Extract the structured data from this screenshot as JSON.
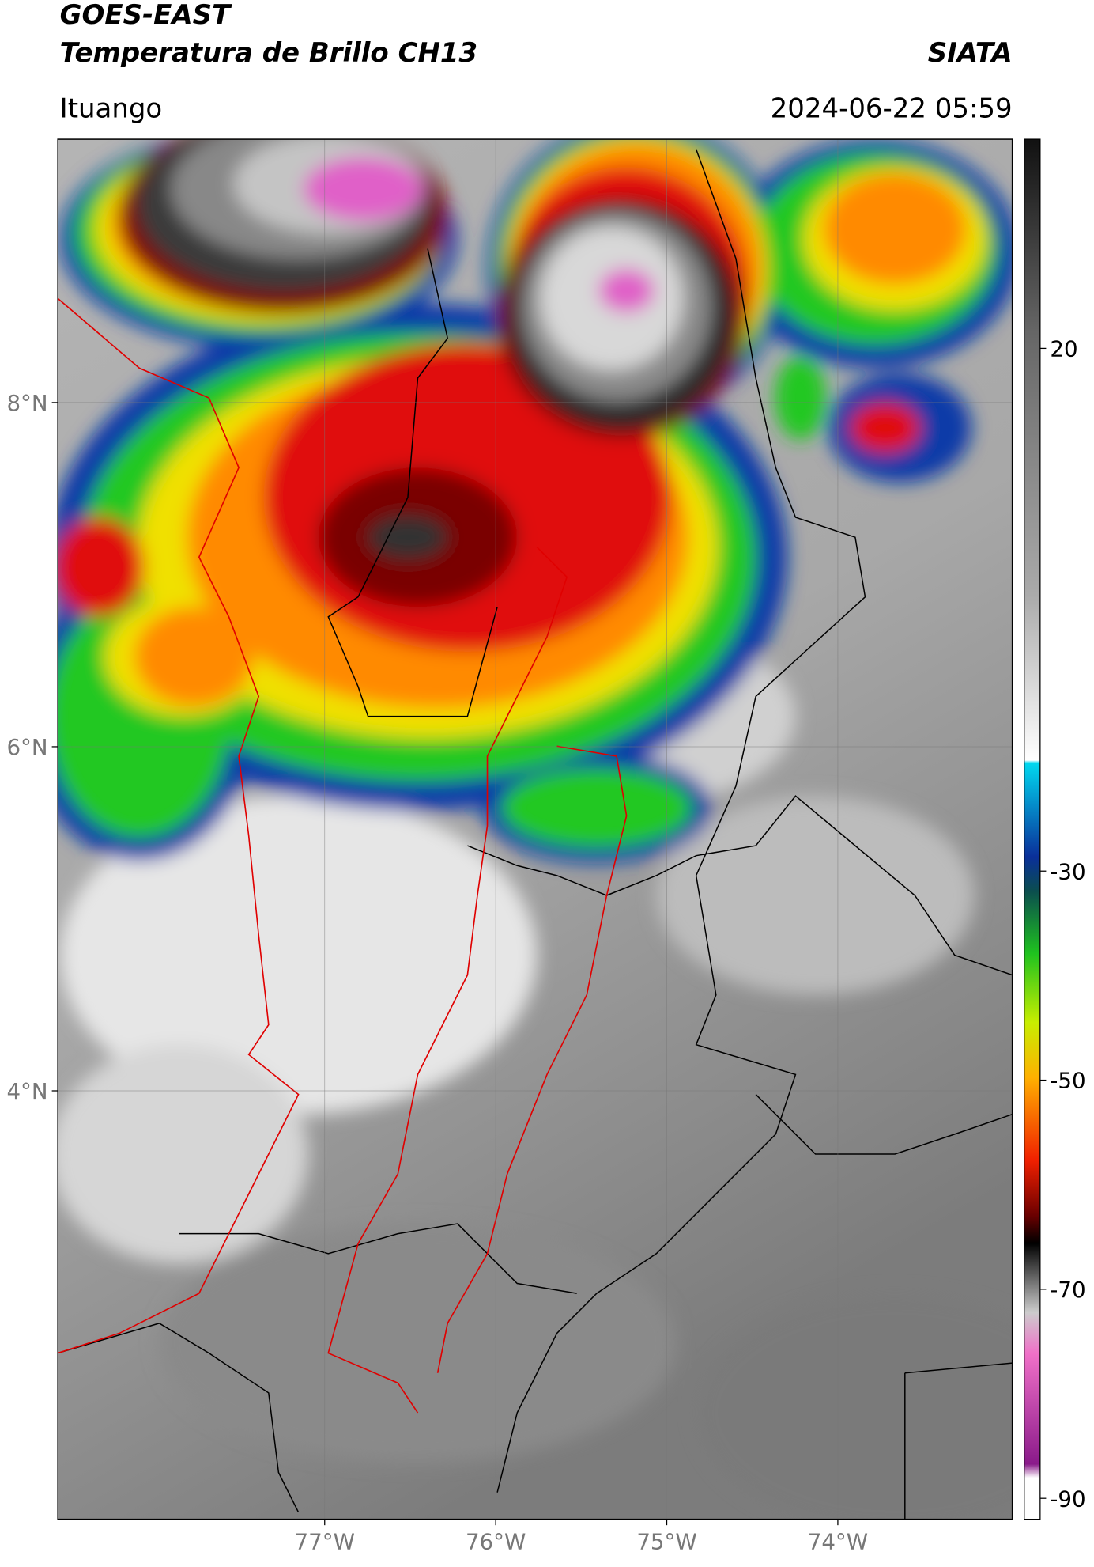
{
  "header": {
    "title_line1": "GOES-EAST",
    "title_line2": "Temperatura de Brillo CH13",
    "agency": "SIATA",
    "location": "Ituango",
    "datetime": "2024-06-22 05:59"
  },
  "map": {
    "lon_range": [
      -78.56,
      -72.98
    ],
    "lat_range": [
      1.51,
      9.53
    ],
    "lon_ticks": [
      {
        "value": -77,
        "label": "77°W"
      },
      {
        "value": -76,
        "label": "76°W"
      },
      {
        "value": -75,
        "label": "75°W"
      },
      {
        "value": -74,
        "label": "74°W"
      }
    ],
    "lat_ticks": [
      {
        "value": 8,
        "label": "8°N"
      },
      {
        "value": 6,
        "label": "6°N"
      },
      {
        "value": 4,
        "label": "4°N"
      }
    ]
  },
  "colorbar": {
    "range": [
      -92,
      40
    ],
    "ticks": [
      20,
      -30,
      -50,
      -70,
      -90
    ]
  }
}
